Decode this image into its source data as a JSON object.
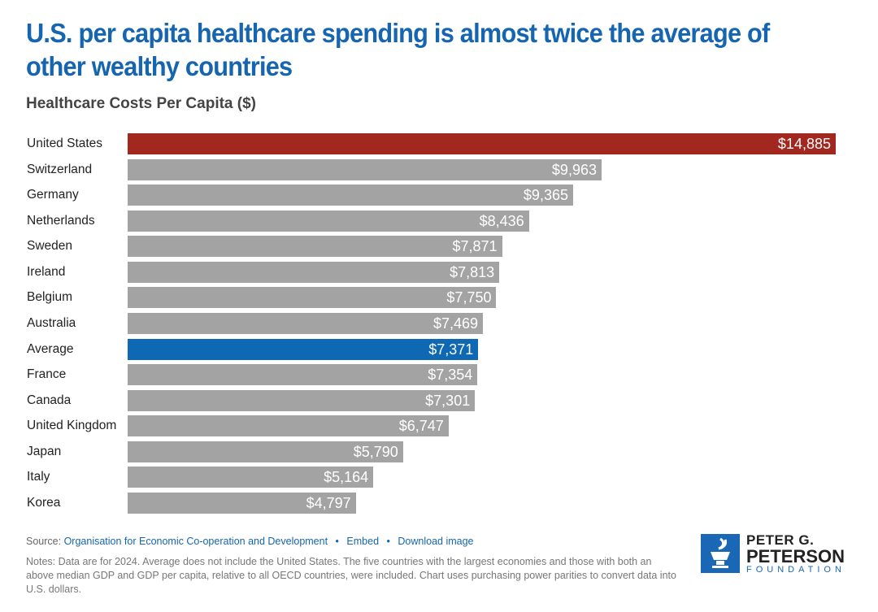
{
  "chart_data": {
    "type": "bar",
    "orientation": "horizontal",
    "title": "U.S. per capita healthcare spending is almost twice the average of other wealthy countries",
    "subtitle": "Healthcare Costs Per Capita ($)",
    "categories": [
      "United States",
      "Switzerland",
      "Germany",
      "Netherlands",
      "Sweden",
      "Ireland",
      "Belgium",
      "Australia",
      "Average",
      "France",
      "Canada",
      "United Kingdom",
      "Japan",
      "Italy",
      "Korea"
    ],
    "values": [
      14885,
      9963,
      9365,
      8436,
      7871,
      7813,
      7750,
      7469,
      7371,
      7354,
      7301,
      6747,
      5790,
      5164,
      4797
    ],
    "value_labels": [
      "$14,885",
      "$9,963",
      "$9,365",
      "$8,436",
      "$7,871",
      "$7,813",
      "$7,750",
      "$7,469",
      "$7,371",
      "$7,354",
      "$7,301",
      "$6,747",
      "$5,790",
      "$5,164",
      "$4,797"
    ],
    "colors": {
      "default": "#a3a3a3",
      "United States": "#a1271f",
      "Average": "#0e68b3"
    },
    "grid": false
  },
  "source": {
    "prefix": "Source:",
    "link": "Organisation for Economic Co-operation and Development",
    "embed": "Embed",
    "download": "Download image",
    "separator": "•"
  },
  "notes": "Notes: Data are for 2024. Average does not include the United States. The five countries with the largest economies and those with both an above median GDP and GDP per capita, relative to all OECD countries, were included. Chart uses purchasing power parities to convert data into U.S. dollars.",
  "logo": {
    "line1": "PETER G.",
    "line2": "PETERSON",
    "line3": "FOUNDATION"
  }
}
